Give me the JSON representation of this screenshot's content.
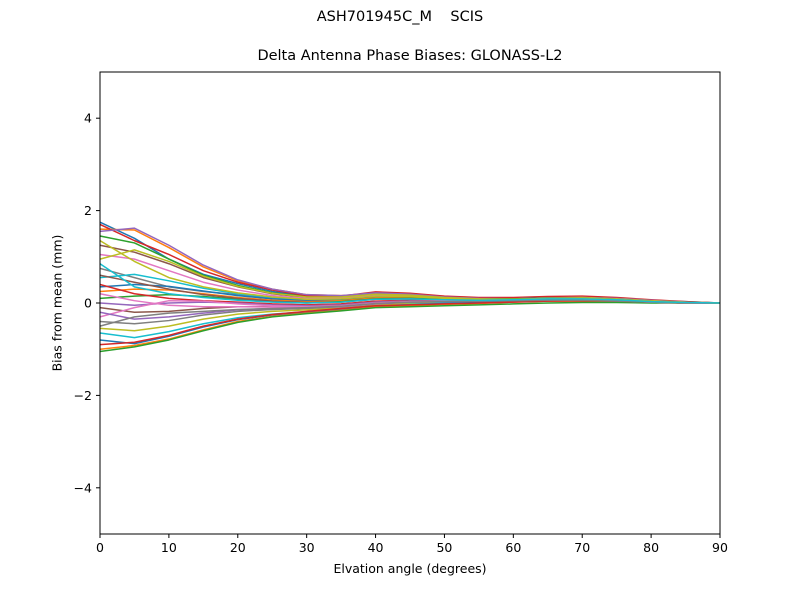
{
  "chart_data": {
    "type": "line",
    "suptitle": "ASH701945C_M    SCIS",
    "title": "Delta Antenna Phase Biases: GLONASS-L2",
    "xlabel": "Elvation angle (degrees)",
    "ylabel": "Bias from mean (mm)",
    "xlim": [
      0,
      90
    ],
    "ylim": [
      -5,
      5
    ],
    "x_ticks": [
      0,
      10,
      20,
      30,
      40,
      50,
      60,
      70,
      80,
      90
    ],
    "y_ticks": [
      -4,
      -2,
      0,
      2,
      4
    ],
    "grid": false,
    "legend": "none",
    "x": [
      0,
      5,
      10,
      15,
      20,
      25,
      30,
      35,
      40,
      45,
      50,
      55,
      60,
      65,
      70,
      75,
      80,
      85,
      90
    ],
    "series_colors": [
      "#1f77b4",
      "#ff7f0e",
      "#2ca02c",
      "#d62728",
      "#9467bd",
      "#8c564b",
      "#e377c2",
      "#7f7f7f",
      "#bcbd22",
      "#17becf"
    ],
    "series": [
      {
        "values": [
          1.75,
          1.4,
          0.95,
          0.62,
          0.42,
          0.25,
          0.15,
          0.15,
          0.22,
          0.2,
          0.14,
          0.1,
          0.08,
          0.1,
          0.12,
          0.1,
          0.06,
          0.03,
          0.0
        ]
      },
      {
        "values": [
          1.6,
          1.58,
          1.2,
          0.78,
          0.48,
          0.3,
          0.18,
          0.16,
          0.21,
          0.18,
          0.12,
          0.09,
          0.08,
          0.1,
          0.12,
          0.1,
          0.06,
          0.02,
          0.0
        ]
      },
      {
        "values": [
          1.45,
          1.3,
          0.95,
          0.6,
          0.38,
          0.22,
          0.14,
          0.14,
          0.2,
          0.18,
          0.12,
          0.1,
          0.1,
          0.12,
          0.14,
          0.11,
          0.06,
          0.02,
          0.0
        ]
      },
      {
        "values": [
          1.7,
          1.35,
          1.05,
          0.7,
          0.45,
          0.28,
          0.16,
          0.15,
          0.24,
          0.21,
          0.15,
          0.12,
          0.12,
          0.14,
          0.15,
          0.12,
          0.07,
          0.03,
          0.0
        ]
      },
      {
        "values": [
          1.55,
          1.62,
          1.25,
          0.82,
          0.5,
          0.3,
          0.18,
          0.16,
          0.22,
          0.19,
          0.13,
          0.1,
          0.09,
          0.11,
          0.12,
          0.1,
          0.06,
          0.02,
          0.0
        ]
      },
      {
        "values": [
          1.25,
          1.1,
          0.85,
          0.55,
          0.35,
          0.2,
          0.12,
          0.12,
          0.18,
          0.16,
          0.11,
          0.08,
          0.08,
          0.1,
          0.11,
          0.09,
          0.05,
          0.02,
          0.0
        ]
      },
      {
        "values": [
          1.05,
          0.95,
          0.7,
          0.45,
          0.28,
          0.16,
          0.1,
          0.11,
          0.16,
          0.15,
          0.1,
          0.08,
          0.09,
          0.11,
          0.12,
          0.09,
          0.05,
          0.02,
          0.0
        ]
      },
      {
        "values": [
          0.75,
          0.55,
          0.35,
          0.25,
          0.18,
          0.1,
          0.05,
          0.06,
          0.12,
          0.12,
          0.08,
          0.07,
          0.08,
          0.1,
          0.1,
          0.08,
          0.04,
          0.01,
          0.0
        ]
      },
      {
        "values": [
          0.95,
          1.15,
          0.9,
          0.58,
          0.36,
          0.21,
          0.13,
          0.13,
          0.19,
          0.17,
          0.12,
          0.09,
          0.09,
          0.11,
          0.12,
          0.09,
          0.05,
          0.02,
          0.0
        ]
      },
      {
        "values": [
          0.55,
          0.62,
          0.48,
          0.32,
          0.2,
          0.12,
          0.07,
          0.08,
          0.14,
          0.13,
          0.09,
          0.07,
          0.08,
          0.1,
          0.11,
          0.08,
          0.04,
          0.01,
          0.0
        ]
      },
      {
        "values": [
          0.35,
          0.4,
          0.36,
          0.26,
          0.16,
          0.09,
          0.05,
          0.06,
          0.12,
          0.12,
          0.09,
          0.08,
          0.09,
          0.11,
          0.11,
          0.08,
          0.04,
          0.01,
          0.0
        ]
      },
      {
        "values": [
          0.25,
          0.3,
          0.28,
          0.2,
          0.12,
          0.06,
          0.03,
          0.05,
          0.11,
          0.11,
          0.08,
          0.07,
          0.08,
          0.1,
          0.1,
          0.07,
          0.04,
          0.01,
          0.0
        ]
      },
      {
        "values": [
          0.1,
          0.15,
          0.18,
          0.14,
          0.08,
          0.03,
          0.0,
          0.03,
          0.09,
          0.1,
          0.08,
          0.08,
          0.09,
          0.1,
          0.1,
          0.07,
          0.03,
          0.01,
          0.0
        ]
      },
      {
        "values": [
          0.4,
          0.2,
          0.1,
          0.05,
          0.02,
          -0.02,
          -0.04,
          -0.02,
          0.04,
          0.06,
          0.05,
          0.05,
          0.06,
          0.08,
          0.08,
          0.06,
          0.03,
          0.01,
          0.0
        ]
      },
      {
        "values": [
          0.0,
          -0.05,
          0.0,
          0.02,
          0.0,
          -0.04,
          -0.06,
          -0.04,
          0.02,
          0.05,
          0.05,
          0.06,
          0.07,
          0.08,
          0.08,
          0.06,
          0.03,
          0.01,
          0.0
        ]
      },
      {
        "values": [
          -0.1,
          -0.2,
          -0.18,
          -0.12,
          -0.08,
          -0.08,
          -0.08,
          -0.06,
          0.0,
          0.04,
          0.05,
          0.06,
          0.07,
          0.08,
          0.07,
          0.05,
          0.03,
          0.01,
          0.0
        ]
      },
      {
        "values": [
          -0.3,
          -0.1,
          0.05,
          0.04,
          -0.02,
          -0.06,
          -0.08,
          -0.06,
          0.0,
          0.03,
          0.03,
          0.04,
          0.06,
          0.07,
          0.07,
          0.05,
          0.02,
          0.0,
          0.0
        ]
      },
      {
        "values": [
          -0.4,
          -0.45,
          -0.38,
          -0.26,
          -0.18,
          -0.14,
          -0.12,
          -0.09,
          -0.03,
          0.01,
          0.03,
          0.04,
          0.06,
          0.07,
          0.07,
          0.05,
          0.02,
          0.0,
          0.0
        ]
      },
      {
        "values": [
          -0.55,
          -0.6,
          -0.5,
          -0.35,
          -0.24,
          -0.18,
          -0.15,
          -0.11,
          -0.05,
          -0.01,
          0.01,
          0.03,
          0.05,
          0.06,
          0.06,
          0.04,
          0.02,
          0.0,
          0.0
        ]
      },
      {
        "values": [
          -0.65,
          -0.75,
          -0.62,
          -0.45,
          -0.32,
          -0.24,
          -0.19,
          -0.14,
          -0.07,
          -0.03,
          0.0,
          0.02,
          0.04,
          0.05,
          0.05,
          0.04,
          0.02,
          0.0,
          0.0
        ]
      },
      {
        "values": [
          -0.8,
          -0.88,
          -0.72,
          -0.52,
          -0.36,
          -0.26,
          -0.2,
          -0.14,
          -0.07,
          -0.04,
          -0.01,
          0.01,
          0.03,
          0.05,
          0.05,
          0.04,
          0.02,
          0.0,
          0.0
        ]
      },
      {
        "values": [
          -1.0,
          -0.92,
          -0.78,
          -0.58,
          -0.4,
          -0.29,
          -0.22,
          -0.16,
          -0.09,
          -0.06,
          -0.03,
          -0.01,
          0.02,
          0.04,
          0.04,
          0.03,
          0.01,
          0.0,
          0.0
        ]
      },
      {
        "values": [
          -1.05,
          -0.95,
          -0.8,
          -0.6,
          -0.42,
          -0.3,
          -0.23,
          -0.17,
          -0.1,
          -0.08,
          -0.06,
          -0.04,
          -0.02,
          0.0,
          0.01,
          0.01,
          0.0,
          0.0,
          0.0
        ]
      },
      {
        "values": [
          -0.9,
          -0.85,
          -0.7,
          -0.5,
          -0.35,
          -0.25,
          -0.18,
          -0.12,
          -0.06,
          -0.04,
          -0.02,
          0.0,
          0.02,
          0.04,
          0.05,
          0.04,
          0.02,
          0.0,
          0.0
        ]
      },
      {
        "values": [
          -0.2,
          -0.35,
          -0.3,
          -0.22,
          -0.15,
          -0.12,
          -0.1,
          -0.08,
          -0.02,
          0.02,
          0.03,
          0.04,
          0.06,
          0.07,
          0.07,
          0.05,
          0.02,
          0.0,
          0.0
        ]
      },
      {
        "values": [
          0.6,
          0.45,
          0.3,
          0.18,
          0.1,
          0.04,
          0.01,
          0.02,
          0.08,
          0.09,
          0.07,
          0.06,
          0.07,
          0.09,
          0.09,
          0.07,
          0.03,
          0.01,
          0.0
        ]
      },
      {
        "values": [
          0.2,
          0.05,
          -0.05,
          -0.08,
          -0.08,
          -0.09,
          -0.09,
          -0.07,
          -0.01,
          0.03,
          0.04,
          0.05,
          0.06,
          0.07,
          0.07,
          0.05,
          0.02,
          0.0,
          0.0
        ]
      },
      {
        "values": [
          -0.5,
          -0.3,
          -0.22,
          -0.18,
          -0.14,
          -0.12,
          -0.1,
          -0.07,
          -0.01,
          0.02,
          0.03,
          0.04,
          0.05,
          0.06,
          0.06,
          0.04,
          0.02,
          0.0,
          0.0
        ]
      },
      {
        "values": [
          1.35,
          0.9,
          0.55,
          0.35,
          0.22,
          0.13,
          0.08,
          0.09,
          0.15,
          0.14,
          0.1,
          0.08,
          0.08,
          0.1,
          0.11,
          0.08,
          0.04,
          0.01,
          0.0
        ]
      },
      {
        "values": [
          0.85,
          0.35,
          0.2,
          0.12,
          0.06,
          0.02,
          0.0,
          0.02,
          0.08,
          0.09,
          0.07,
          0.06,
          0.07,
          0.09,
          0.09,
          0.07,
          0.03,
          0.01,
          0.0
        ]
      }
    ]
  }
}
